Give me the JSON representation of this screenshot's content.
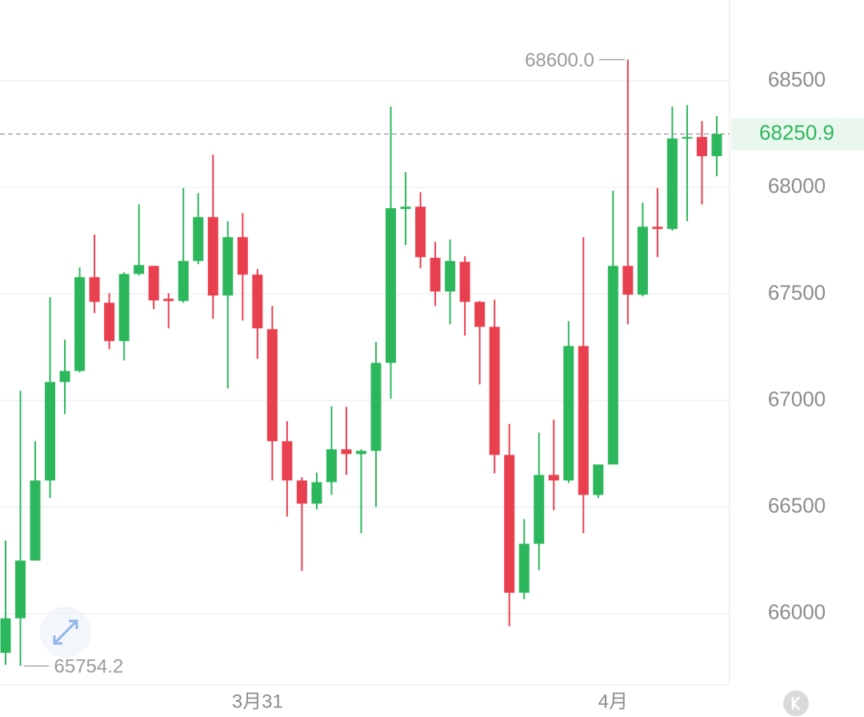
{
  "chart_data": {
    "type": "candlestick",
    "categories": [
      null,
      null,
      null,
      null,
      null,
      null,
      null,
      null,
      null,
      null,
      null,
      null,
      null,
      null,
      null,
      null,
      null,
      "3月31",
      null,
      null,
      null,
      null,
      null,
      null,
      null,
      null,
      null,
      null,
      null,
      null,
      null,
      null,
      null,
      null,
      null,
      null,
      null,
      null,
      null,
      null,
      null,
      "4月",
      null,
      null,
      null,
      null,
      null,
      null,
      null
    ],
    "open": [
      65816,
      65978,
      66249,
      66625,
      67087,
      67139,
      67579,
      67459,
      67279,
      67594,
      67632,
      67478,
      67467,
      67655,
      67861,
      67493,
      67767,
      67591,
      67335,
      66809,
      66625,
      66516,
      66617,
      66771,
      66749,
      66764,
      67177,
      67899,
      67910,
      67670,
      67512,
      67651,
      67463,
      67346,
      66745,
      66098,
      66328,
      66651,
      66625,
      67256,
      66557,
      66700,
      67632,
      67497,
      67816,
      67805,
      68230,
      68237,
      68147
    ],
    "high": [
      66343,
      67046,
      66809,
      67485,
      67286,
      67625,
      67779,
      67504,
      67602,
      67921,
      67632,
      67504,
      67997,
      67974,
      68154,
      67842,
      67880,
      67617,
      67444,
      66903,
      66640,
      66662,
      66974,
      66970,
      66771,
      67275,
      68380,
      68072,
      67978,
      67745,
      67756,
      67677,
      67467,
      67474,
      66891,
      66444,
      66850,
      66910,
      67373,
      67767,
      66700,
      67985,
      68600,
      67929,
      67997,
      68380,
      68387,
      68312,
      68335
    ],
    "low": [
      65760,
      65754.2,
      66249,
      66542,
      66937,
      67132,
      67410,
      67241,
      67188,
      67587,
      67429,
      67339,
      67459,
      67640,
      67384,
      67057,
      67376,
      67196,
      66625,
      66455,
      66200,
      66489,
      66557,
      66651,
      66377,
      66500,
      67008,
      67730,
      67621,
      67444,
      67358,
      67305,
      67076,
      66658,
      65940,
      66068,
      66204,
      66485,
      66613,
      66377,
      66542,
      66700,
      67358,
      67489,
      67673,
      67797,
      67842,
      67921,
      68053
    ],
    "close": [
      65978,
      66249,
      66625,
      67087,
      67139,
      67579,
      67463,
      67279,
      67594,
      67636,
      67470,
      67467,
      67655,
      67861,
      67493,
      67767,
      67591,
      67339,
      66809,
      66625,
      66516,
      66617,
      66771,
      66749,
      66764,
      67177,
      67903,
      67910,
      67673,
      67512,
      67655,
      67463,
      67346,
      66745,
      66098,
      66328,
      66651,
      66625,
      67256,
      66557,
      66700,
      67632,
      67497,
      67816,
      67805,
      68230,
      68237,
      68147,
      68250.9
    ],
    "up_color": "#2db75c",
    "down_color": "#e8404e",
    "ylim": [
      65665,
      68880
    ],
    "yticks": [
      66000,
      66500,
      67000,
      67500,
      68000,
      68500
    ],
    "grid": true,
    "annotations": [
      {
        "value": 68600,
        "label": "68600.0"
      },
      {
        "value": 65754.2,
        "label": "65754.2"
      }
    ],
    "last_price": {
      "value": 68250.9,
      "label": "68250.9",
      "color": "#2db75c"
    }
  }
}
